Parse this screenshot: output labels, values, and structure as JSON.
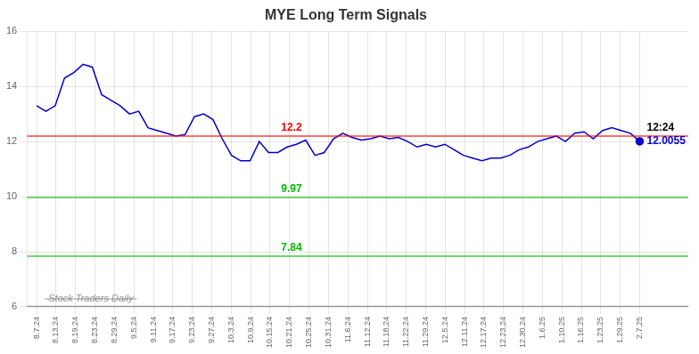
{
  "chart_data": {
    "type": "line",
    "title": "MYE Long Term Signals",
    "x": [
      0,
      0.4769,
      0.9538,
      1.4308,
      1.9077,
      2.3846,
      2.8615,
      3.3385,
      3.8154,
      4.2923,
      4.7692,
      5.2462,
      5.7231,
      6.2,
      6.6769,
      7.1538,
      7.6308,
      8.1077,
      8.5846,
      9.0615,
      9.5385,
      10.0154,
      10.4923,
      10.9692,
      11.4462,
      11.9231,
      12.4,
      12.8769,
      13.3538,
      13.8308,
      14.3077,
      14.7846,
      15.2615,
      15.7385,
      16.2154,
      16.6923,
      17.1692,
      17.6462,
      18.1231,
      18.6,
      19.0769,
      19.5538,
      20.0308,
      20.5077,
      20.9846,
      21.4615,
      21.9385,
      22.4154,
      22.8923,
      23.3692,
      23.8462,
      24.3231,
      24.8,
      25.2769,
      25.7538,
      26.2308,
      26.7077,
      27.1846,
      27.6615,
      28.1385,
      28.6154,
      29.0923,
      29.5692,
      30.0462,
      30.5231,
      31
    ],
    "values": [
      13.3,
      13.1,
      13.3,
      14.3,
      14.5,
      14.8,
      14.7,
      13.7,
      13.5,
      13.3,
      13.0,
      13.1,
      12.5,
      12.4,
      12.3,
      12.2,
      12.25,
      12.9,
      13.0,
      12.8,
      12.1,
      11.5,
      11.3,
      11.3,
      12.0,
      11.6,
      11.6,
      11.8,
      11.9,
      12.05,
      11.5,
      11.6,
      12.1,
      12.3,
      12.15,
      12.05,
      12.1,
      12.2,
      12.1,
      12.15,
      12.0,
      11.8,
      11.9,
      11.8,
      11.9,
      11.7,
      11.5,
      11.4,
      11.3,
      11.4,
      11.4,
      11.5,
      11.7,
      11.8,
      12.0,
      12.1,
      12.2,
      12.0,
      12.3,
      12.35,
      12.1,
      12.4,
      12.5,
      12.4,
      12.3,
      12.0055
    ],
    "color": "#0000cc",
    "xlim": [
      -0.5,
      33.5
    ],
    "xticks": [
      {
        "value": 0,
        "label": "8.7.24"
      },
      {
        "value": 1,
        "label": "8.13.24"
      },
      {
        "value": 2,
        "label": "8.19.24"
      },
      {
        "value": 3,
        "label": "8.23.24"
      },
      {
        "value": 4,
        "label": "8.29.24"
      },
      {
        "value": 5,
        "label": "9.5.24"
      },
      {
        "value": 6,
        "label": "9.11.24"
      },
      {
        "value": 7,
        "label": "9.17.24"
      },
      {
        "value": 8,
        "label": "9.23.24"
      },
      {
        "value": 9,
        "label": "9.27.24"
      },
      {
        "value": 10,
        "label": "10.3.24"
      },
      {
        "value": 11,
        "label": "10.9.24"
      },
      {
        "value": 12,
        "label": "10.15.24"
      },
      {
        "value": 13,
        "label": "10.21.24"
      },
      {
        "value": 14,
        "label": "10.25.24"
      },
      {
        "value": 15,
        "label": "10.31.24"
      },
      {
        "value": 16,
        "label": "11.6.24"
      },
      {
        "value": 17,
        "label": "11.12.24"
      },
      {
        "value": 18,
        "label": "11.18.24"
      },
      {
        "value": 19,
        "label": "11.22.24"
      },
      {
        "value": 20,
        "label": "11.29.24"
      },
      {
        "value": 21,
        "label": "12.5.24"
      },
      {
        "value": 22,
        "label": "12.11.24"
      },
      {
        "value": 23,
        "label": "12.17.24"
      },
      {
        "value": 24,
        "label": "12.23.24"
      },
      {
        "value": 25,
        "label": "12.30.24"
      },
      {
        "value": 26,
        "label": "1.6.25"
      },
      {
        "value": 27,
        "label": "1.10.25"
      },
      {
        "value": 28,
        "label": "1.16.25"
      },
      {
        "value": 29,
        "label": "1.23.25"
      },
      {
        "value": 30,
        "label": "1.29.25"
      },
      {
        "value": 31,
        "label": "2.7.25"
      }
    ],
    "ylim": [
      6,
      16
    ],
    "yticks": [
      6,
      8,
      10,
      12,
      14,
      16
    ],
    "grid": true,
    "hlines": [
      {
        "y": 12.2,
        "color": "#ff0000",
        "label": "12.2"
      },
      {
        "y": 9.97,
        "color": "#00bb00",
        "label": "9.97"
      },
      {
        "y": 7.84,
        "color": "#00bb00",
        "label": "7.84"
      }
    ],
    "watermark": {
      "text": "Stock Traders Daily",
      "y": 6.0,
      "color": "#808080"
    },
    "last_point_labels": [
      {
        "text": "12:24",
        "color": "#000000"
      },
      {
        "text": "12.0055",
        "color": "#0000cc"
      }
    ]
  }
}
